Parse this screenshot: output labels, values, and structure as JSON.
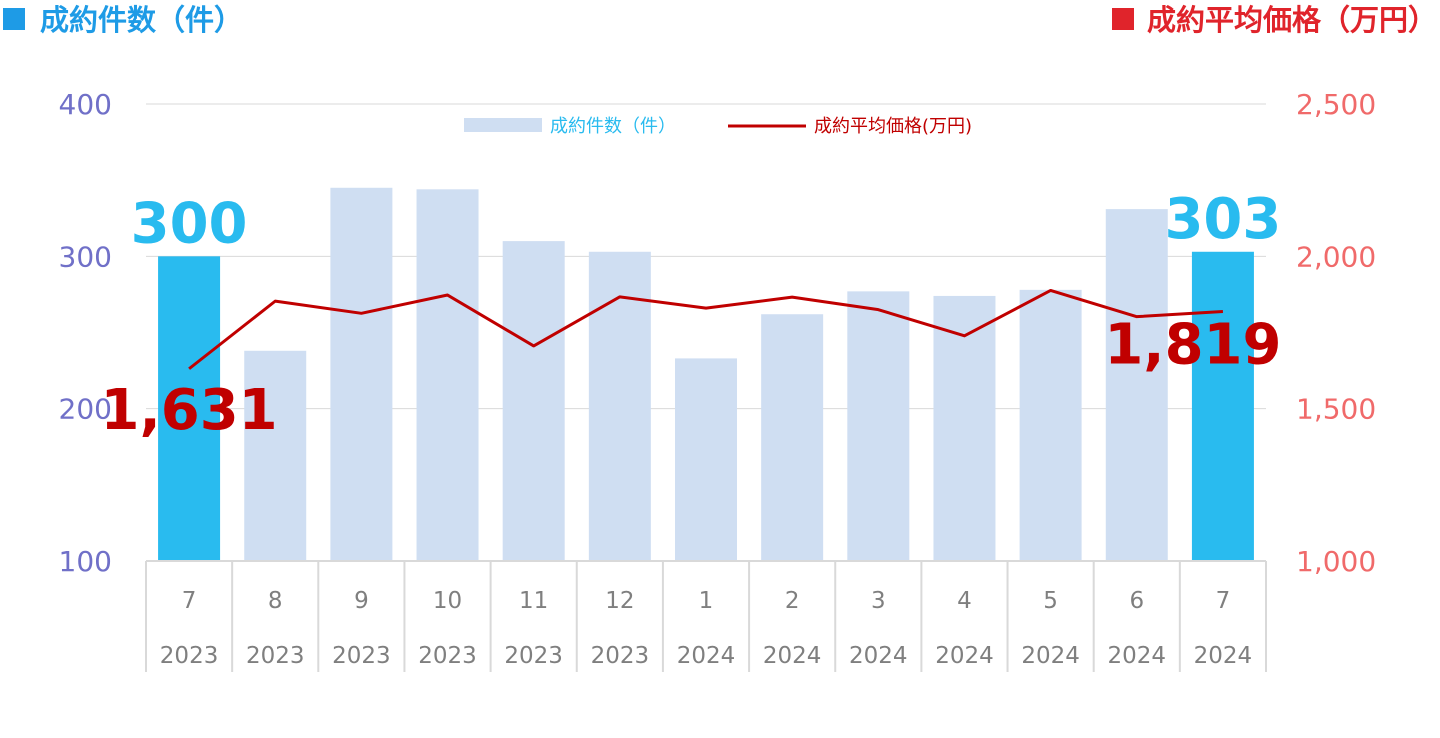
{
  "header": {
    "left_title": "成約件数（件）",
    "right_title": "成約平均価格（万円）"
  },
  "legend": {
    "bar_label": "成約件数（件）",
    "line_label": "成約平均価格(万円)"
  },
  "colors": {
    "bar_highlight": "#29BBEF",
    "bar_normal": "#CFDEF2",
    "line": "#C00000",
    "left_axis": "#7070C8",
    "right_axis": "#F06A6A",
    "left_title": "#1E9BE6",
    "right_title": "#E0242B"
  },
  "chart_data": {
    "type": "bar",
    "categories": [
      "7",
      "8",
      "9",
      "10",
      "11",
      "12",
      "1",
      "2",
      "3",
      "4",
      "5",
      "6",
      "7"
    ],
    "years": [
      "2023",
      "2023",
      "2023",
      "2023",
      "2023",
      "2023",
      "2024",
      "2024",
      "2024",
      "2024",
      "2024",
      "2024",
      "2024"
    ],
    "series": [
      {
        "name": "成約件数（件）",
        "type": "bar",
        "axis": "left",
        "values": [
          300,
          238,
          345,
          344,
          310,
          303,
          233,
          262,
          277,
          274,
          278,
          331,
          303
        ],
        "highlight": [
          0,
          12
        ]
      },
      {
        "name": "成約平均価格(万円)",
        "type": "line",
        "axis": "right",
        "values": [
          1631,
          1853,
          1813,
          1873,
          1706,
          1867,
          1830,
          1866,
          1825,
          1739,
          1888,
          1802,
          1819
        ]
      }
    ],
    "left_axis": {
      "ylim": [
        100,
        400
      ],
      "ticks": [
        "100",
        "200",
        "300",
        "400"
      ]
    },
    "right_axis": {
      "ylim": [
        1000,
        2500
      ],
      "ticks": [
        "1,000",
        "1,500",
        "2,000",
        "2,500"
      ]
    },
    "annotations": [
      {
        "series": "bar",
        "index": 0,
        "text": "300"
      },
      {
        "series": "bar",
        "index": 12,
        "text": "303"
      },
      {
        "series": "line",
        "index": 0,
        "text": "1,631"
      },
      {
        "series": "line",
        "index": 12,
        "text": "1,819"
      }
    ],
    "grid": true,
    "legend_position": "top-center"
  }
}
